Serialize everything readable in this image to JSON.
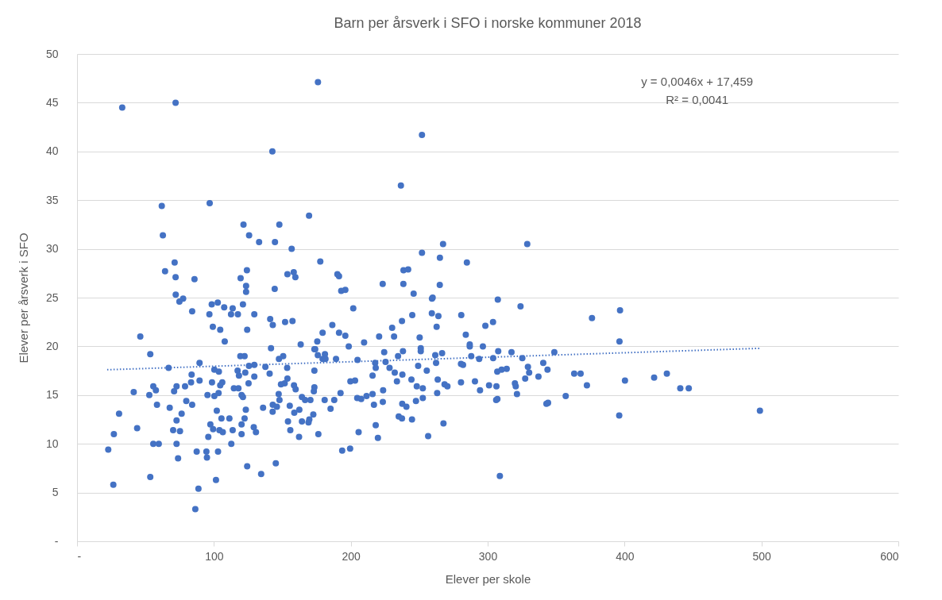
{
  "chart_data": {
    "type": "scatter",
    "title": "Barn per årsverk i SFO i norske kommuner 2018",
    "xlabel": "Elever per skole",
    "ylabel": "Elever per årsverk i SFO",
    "annotations": [
      "y = 0,0046x + 17,459",
      "R² = 0,0041"
    ],
    "xlim": [
      0,
      600
    ],
    "xticks": [
      {
        "value": 0,
        "label": "-"
      },
      100,
      200,
      300,
      400,
      500,
      600
    ],
    "ylim": [
      0,
      50
    ],
    "yticks": [
      {
        "value": 0,
        "label": "-"
      },
      5,
      10,
      15,
      20,
      25,
      30,
      35,
      40,
      45,
      50
    ],
    "grid": "y",
    "series": [
      {
        "color": "#4472c4",
        "marker": "circle",
        "x": [
          33,
          72,
          176,
          142.7,
          252,
          236.6,
          96.9,
          61.9,
          62.7,
          169.5,
          121.6,
          147.8,
          125.7,
          133,
          144.6,
          156.8,
          252,
          71.3,
          177.7,
          238.5,
          241.9,
          64.3,
          72,
          85.8,
          119.5,
          124.1,
          153.7,
          158.3,
          159.5,
          190.2,
          191.4,
          123.5,
          123.5,
          144.4,
          193,
          196,
          223.3,
          238.4,
          245.9,
          259.3,
          267.4,
          328.9,
          265.1,
          284.8,
          265,
          259.8,
          307.4,
          72.1,
          74.8,
          77.5,
          84.1,
          98.4,
          102.8,
          107.5,
          113.7,
          121.2,
          96.7,
          112.5,
          117.5,
          129.5,
          141.1,
          143,
          152,
          157.4,
          99.2,
          104.6,
          124.3,
          46.2,
          107.9,
          163.4,
          141.7,
          173.4,
          53.5,
          119.3,
          122.4,
          147.5,
          150.6,
          89.5,
          66.9,
          125.6,
          129.5,
          137.6,
          153.5,
          100.3,
          103.6,
          117.3,
          118.3,
          122.9,
          140.7,
          173.4,
          83.7,
          89.5,
          83.3,
          98.6,
          106.1,
          104.6,
          129.5,
          125.3,
          153.7,
          149,
          151.7,
          158.5,
          159.7,
          55.7,
          57.6,
          72.7,
          70.9,
          78.9,
          114.6,
          117.9,
          41.4,
          52.8,
          95.3,
          100.3,
          103.4,
          120.2,
          121.2,
          147.3,
          173,
          164.3,
          166.6,
          170.5,
          147.9,
          79.8,
          58.4,
          84.1,
          67.7,
          135.9,
          143,
          146,
          142.9,
          155.4,
          123.3,
          102.1,
          162.4,
          158.7,
          172.6,
          30.7,
          76.4,
          105.5,
          111.3,
          122.4,
          72.7,
          154.1,
          164.3,
          169.1,
          169.7,
          97.4,
          120.2,
          43.9,
          129.1,
          130.7,
          70.2,
          75.2,
          99.4,
          104,
          106.5,
          113.7,
          120.2,
          155.8,
          26.9,
          95.9,
          162.2,
          55.7,
          59.7,
          72.7,
          112.7,
          22.8,
          87.4,
          94.5,
          94.9,
          103,
          73.8,
          124.3,
          145.2,
          134.5,
          53.5,
          101.5,
          26.5,
          88.7,
          86.4,
          201.8,
          324,
          259.2,
          264,
          244.9,
          280.7,
          186.5,
          303.9,
          298.3,
          237.4,
          230.2,
          262.7,
          179.4,
          191.4,
          196,
          220.7,
          231.6,
          250.3,
          284,
          175.5,
          209.7,
          198.5,
          286.9,
          286.9,
          296.5,
          174,
          251.1,
          251.1,
          307.7,
          317.4,
          224.4,
          238.1,
          234.5,
          266.7,
          261.7,
          175.9,
          181.1,
          179.4,
          181.5,
          189.2,
          204.9,
          288,
          293.8,
          304,
          325.3,
          217.8,
          218.2,
          225.4,
          262.3,
          280.5,
          282,
          249.2,
          228.3,
          232.1,
          255.5,
          329.4,
          330.3,
          307,
          310.2,
          313.9,
          340.6,
          343.7,
          215.9,
          237.7,
          337.1,
          327.4,
          199.7,
          203.1,
          233.7,
          244.3,
          263.5,
          280.5,
          290.7,
          319.9,
          320.5,
          248.2,
          252.6,
          268.5,
          270.6,
          173.4,
          301,
          306.4,
          294.4,
          223.6,
          192.5,
          215.9,
          263.1,
          321.4,
          180.9,
          187.9,
          204.7,
          207.6,
          211.5,
          223.4,
          247.6,
          252.6,
          306.2,
          307.1,
          216.9,
          237.6,
          240.6,
          185.2,
          342.9,
          235,
          237.4,
          244.7,
          267.7,
          218.2,
          176.3,
          205.7,
          219.8,
          256.5,
          193.7,
          199.5,
          308.9,
          376.2,
          396.7,
          396.3,
          348.7,
          363.2,
          367.9,
          372.5,
          400.3,
          421.6,
          430.9,
          440.7,
          446.9,
          357,
          344.1,
          396.1,
          498.9
        ],
        "values": [
          44.5,
          45.0,
          47.1,
          40.0,
          41.7,
          36.5,
          34.7,
          34.4,
          31.4,
          33.4,
          32.5,
          32.5,
          31.4,
          30.7,
          30.7,
          30.0,
          29.6,
          28.6,
          28.7,
          27.8,
          27.9,
          27.7,
          27.1,
          26.9,
          27.0,
          27.8,
          27.4,
          27.6,
          27.1,
          27.4,
          27.2,
          26.2,
          25.6,
          25.9,
          25.7,
          25.8,
          26.4,
          26.4,
          25.4,
          24.9,
          30.5,
          30.5,
          29.1,
          28.6,
          26.3,
          25.0,
          24.8,
          25.3,
          24.6,
          24.9,
          23.6,
          24.3,
          24.5,
          24.0,
          23.9,
          24.3,
          23.3,
          23.3,
          23.3,
          23.3,
          22.8,
          22.2,
          22.5,
          22.6,
          22.0,
          21.7,
          21.7,
          21.0,
          20.5,
          20.2,
          19.8,
          19.7,
          19.2,
          19.0,
          19.0,
          18.7,
          19.0,
          18.3,
          17.8,
          18.0,
          18.1,
          17.9,
          17.8,
          17.6,
          17.4,
          17.5,
          17.0,
          17.3,
          17.2,
          17.5,
          17.1,
          16.5,
          16.3,
          16.3,
          16.3,
          16.0,
          16.9,
          16.2,
          16.7,
          16.1,
          16.2,
          16.0,
          15.6,
          15.9,
          15.5,
          15.9,
          15.4,
          15.9,
          15.7,
          15.7,
          15.3,
          15.0,
          15.0,
          14.9,
          15.2,
          15.0,
          14.8,
          15.1,
          15.4,
          14.8,
          14.5,
          14.5,
          14.5,
          14.4,
          14.0,
          14.0,
          13.7,
          13.7,
          14.0,
          13.8,
          13.3,
          13.9,
          13.5,
          13.4,
          13.5,
          13.2,
          13.0,
          13.1,
          13.1,
          12.6,
          12.6,
          12.6,
          12.4,
          12.3,
          12.3,
          12.2,
          12.5,
          12.0,
          12.0,
          11.6,
          11.7,
          11.2,
          11.4,
          11.3,
          11.5,
          11.4,
          11.2,
          11.4,
          11.0,
          11.4,
          11.0,
          10.7,
          10.7,
          10.0,
          10.0,
          10.0,
          10.0,
          9.4,
          9.2,
          9.2,
          8.6,
          9.2,
          8.5,
          7.7,
          8.0,
          6.9,
          6.6,
          6.3,
          5.8,
          5.4,
          3.3,
          23.9,
          24.1,
          23.4,
          23.1,
          23.2,
          23.2,
          22.2,
          22.5,
          22.1,
          22.6,
          21.9,
          22.0,
          21.4,
          21.4,
          21.1,
          21.0,
          21.0,
          20.9,
          21.2,
          20.5,
          20.4,
          20.0,
          20.2,
          20.0,
          20.0,
          19.7,
          19.8,
          19.5,
          19.5,
          19.4,
          19.4,
          19.5,
          19.0,
          19.3,
          19.1,
          19.1,
          19.2,
          18.7,
          18.7,
          18.7,
          18.6,
          19.0,
          18.7,
          18.8,
          18.8,
          18.3,
          17.8,
          18.4,
          18.3,
          18.2,
          18.1,
          18.0,
          17.8,
          17.3,
          17.5,
          17.9,
          17.3,
          17.4,
          17.6,
          17.7,
          18.3,
          17.6,
          17.0,
          17.1,
          16.9,
          16.7,
          16.4,
          16.5,
          16.4,
          16.6,
          16.6,
          16.3,
          16.4,
          16.2,
          15.9,
          15.9,
          15.7,
          16.1,
          15.9,
          15.8,
          16.0,
          15.9,
          15.5,
          15.5,
          15.2,
          15.1,
          15.2,
          15.1,
          14.5,
          14.5,
          14.7,
          14.6,
          14.9,
          14.3,
          14.4,
          14.7,
          14.5,
          14.6,
          14.0,
          14.1,
          13.8,
          13.6,
          14.1,
          12.8,
          12.6,
          12.5,
          12.1,
          11.9,
          11.0,
          11.2,
          10.6,
          10.8,
          9.3,
          9.5,
          6.7,
          22.9,
          23.7,
          20.5,
          19.4,
          17.2,
          17.2,
          16.0,
          16.5,
          16.8,
          17.2,
          15.7,
          15.7,
          14.9,
          14.2,
          12.9,
          13.4
        ]
      },
      {
        "type": "line",
        "color": "#4472c4",
        "line_style": "dotted",
        "x": [
          22,
          499
        ],
        "values": [
          17.6,
          19.8
        ]
      }
    ]
  }
}
